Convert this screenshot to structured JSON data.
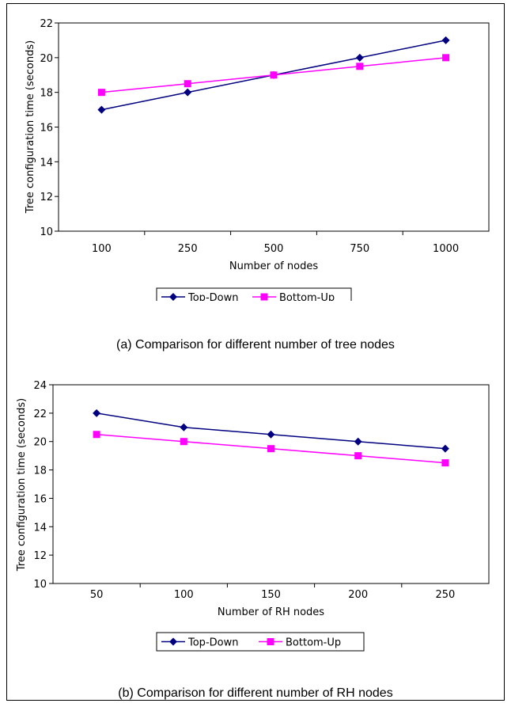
{
  "chart_data": [
    {
      "type": "line",
      "caption": "(a) Comparison for different number of tree nodes",
      "xlabel": "Number of nodes",
      "ylabel": "Tree configuration time (seconds)",
      "categories": [
        "100",
        "250",
        "500",
        "750",
        "1000"
      ],
      "ylim": [
        10,
        22
      ],
      "yticks": [
        10,
        12,
        14,
        16,
        18,
        20,
        22
      ],
      "grid": false,
      "legend_position": "bottom-center",
      "series": [
        {
          "name": "Top-Down",
          "values": [
            17,
            18,
            19,
            20,
            21
          ],
          "color": "#000080",
          "marker": "diamond"
        },
        {
          "name": "Bottom-Up",
          "values": [
            18,
            18.5,
            19,
            19.5,
            20
          ],
          "color": "#ff00ff",
          "marker": "square"
        }
      ]
    },
    {
      "type": "line",
      "caption": "(b) Comparison for different number of RH nodes",
      "xlabel": "Number of RH nodes",
      "ylabel": "Tree configuration time (seconds)",
      "categories": [
        "50",
        "100",
        "150",
        "200",
        "250"
      ],
      "ylim": [
        10,
        24
      ],
      "yticks": [
        10,
        12,
        14,
        16,
        18,
        20,
        22,
        24
      ],
      "grid": false,
      "legend_position": "bottom-center",
      "series": [
        {
          "name": "Top-Down",
          "values": [
            22,
            21,
            20.5,
            20,
            19.5
          ],
          "color": "#000080",
          "marker": "diamond"
        },
        {
          "name": "Bottom-Up",
          "values": [
            20.5,
            20,
            19.5,
            19,
            18.5
          ],
          "color": "#ff00ff",
          "marker": "square"
        }
      ]
    }
  ]
}
